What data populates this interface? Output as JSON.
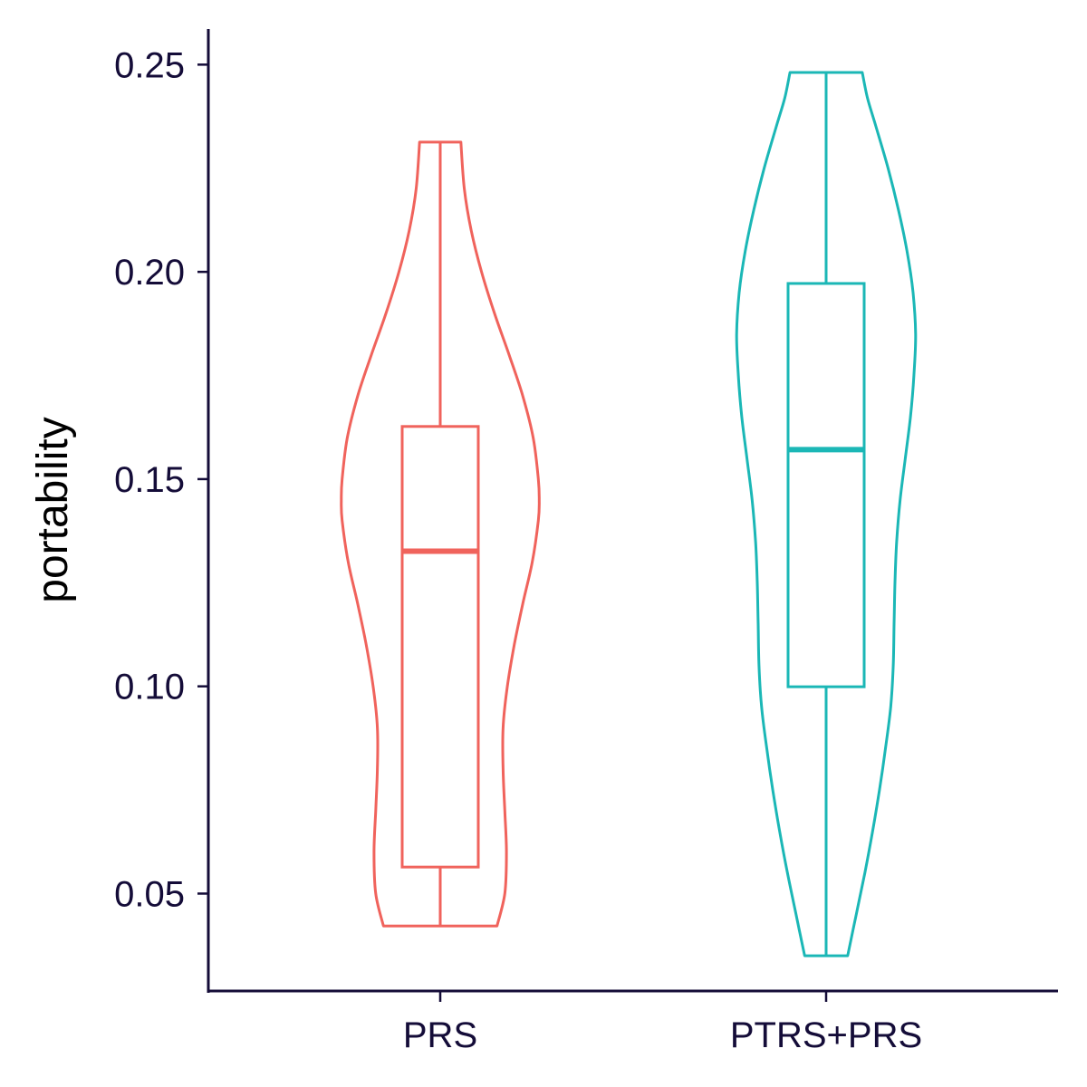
{
  "chart_data": {
    "type": "violin",
    "ylabel": "portability",
    "xlabel": "",
    "ylim": [
      0.0265,
      0.2586
    ],
    "y_ticks": [
      "0.05",
      "0.10",
      "0.15",
      "0.20",
      "0.25"
    ],
    "y_tick_values": [
      0.05,
      0.1,
      0.15,
      0.2,
      0.25
    ],
    "categories": [
      "PRS",
      "PTRS+PRS"
    ],
    "grid": false,
    "legend": "none",
    "series": [
      {
        "category": "PRS",
        "color": "#f0635c",
        "min": 0.0422,
        "max": 0.2313,
        "q1": 0.0564,
        "median": 0.1326,
        "q3": 0.1627,
        "whisker_low": 0.0422,
        "whisker_high": 0.2313,
        "density": [
          [
            0.0422,
            0.33
          ],
          [
            0.05,
            0.375
          ],
          [
            0.06,
            0.385
          ],
          [
            0.07,
            0.375
          ],
          [
            0.08,
            0.365
          ],
          [
            0.09,
            0.365
          ],
          [
            0.1,
            0.39
          ],
          [
            0.11,
            0.43
          ],
          [
            0.12,
            0.48
          ],
          [
            0.13,
            0.535
          ],
          [
            0.14,
            0.57
          ],
          [
            0.145,
            0.575
          ],
          [
            0.15,
            0.57
          ],
          [
            0.16,
            0.54
          ],
          [
            0.17,
            0.48
          ],
          [
            0.18,
            0.4
          ],
          [
            0.19,
            0.315
          ],
          [
            0.2,
            0.24
          ],
          [
            0.21,
            0.18
          ],
          [
            0.22,
            0.14
          ],
          [
            0.2313,
            0.12
          ]
        ]
      },
      {
        "category": "PTRS+PRS",
        "color": "#1bb7b6",
        "min": 0.035,
        "max": 0.2481,
        "q1": 0.0999,
        "median": 0.1571,
        "q3": 0.1972,
        "whisker_low": 0.035,
        "whisker_high": 0.2481,
        "density": [
          [
            0.035,
            0.125
          ],
          [
            0.045,
            0.175
          ],
          [
            0.055,
            0.225
          ],
          [
            0.065,
            0.27
          ],
          [
            0.075,
            0.31
          ],
          [
            0.085,
            0.345
          ],
          [
            0.095,
            0.375
          ],
          [
            0.105,
            0.39
          ],
          [
            0.115,
            0.395
          ],
          [
            0.125,
            0.4
          ],
          [
            0.135,
            0.41
          ],
          [
            0.145,
            0.43
          ],
          [
            0.155,
            0.46
          ],
          [
            0.165,
            0.49
          ],
          [
            0.175,
            0.51
          ],
          [
            0.185,
            0.52
          ],
          [
            0.195,
            0.505
          ],
          [
            0.205,
            0.47
          ],
          [
            0.215,
            0.42
          ],
          [
            0.225,
            0.36
          ],
          [
            0.235,
            0.29
          ],
          [
            0.242,
            0.24
          ],
          [
            0.2481,
            0.21
          ]
        ]
      }
    ]
  }
}
